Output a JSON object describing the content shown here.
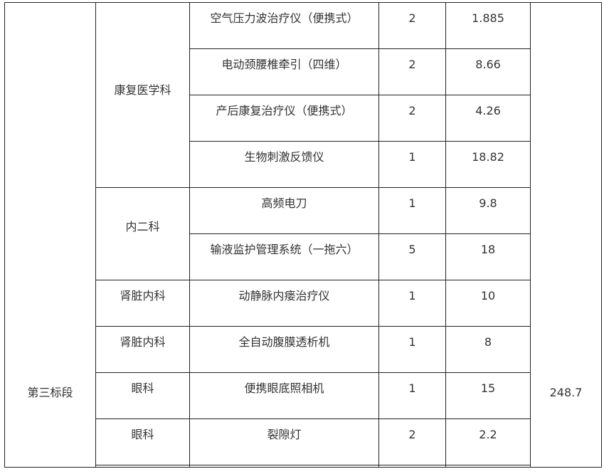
{
  "section": "第三标段",
  "total": "248.7",
  "rows": [
    {
      "dept": "康复医学科",
      "item": "空气压力波治疗仪（便携式）",
      "qty": "2",
      "amount": "1.885"
    },
    {
      "dept": "",
      "item": "电动颈腰椎牵引（四维）",
      "qty": "2",
      "amount": "8.66"
    },
    {
      "dept": "",
      "item": "产后康复治疗仪（便携式）",
      "qty": "2",
      "amount": "4.26"
    },
    {
      "dept": "",
      "item": "生物刺激反馈仪",
      "qty": "1",
      "amount": "18.82"
    },
    {
      "dept": "内二科",
      "item": "高频电刀",
      "qty": "1",
      "amount": "9.8"
    },
    {
      "dept": "",
      "item": "输液监护管理系统（一拖六）",
      "qty": "5",
      "amount": "18"
    },
    {
      "dept": "肾脏内科",
      "item": "动静脉内瘘治疗仪",
      "qty": "1",
      "amount": "10"
    },
    {
      "dept": "肾脏内科",
      "item": "全自动腹膜透析机",
      "qty": "1",
      "amount": "8"
    },
    {
      "dept": "眼科",
      "item": "便携眼底照相机",
      "qty": "1",
      "amount": "15"
    },
    {
      "dept": "眼科",
      "item": "裂隙灯",
      "qty": "2",
      "amount": "2.2"
    }
  ]
}
